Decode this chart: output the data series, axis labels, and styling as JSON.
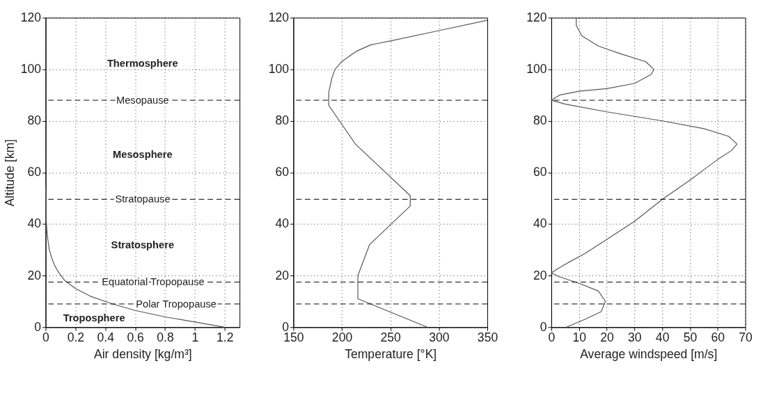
{
  "chart_data": [
    {
      "type": "line",
      "xlabel": "Air density [kg/m³]",
      "ylabel": "Altitude [km]",
      "xlim": [
        0,
        1.3
      ],
      "xticks": [
        0,
        0.2,
        0.4,
        0.6,
        0.8,
        1,
        1.2
      ],
      "ylim": [
        0,
        120
      ],
      "yticks": [
        0,
        20,
        40,
        60,
        80,
        100,
        120
      ],
      "grid": true,
      "series": [
        {
          "color": "#555555",
          "x": [
            1.2,
            1.0,
            0.8,
            0.6,
            0.45,
            0.3,
            0.2,
            0.13,
            0.09,
            0.06,
            0.04,
            0.025,
            0.015,
            0.008,
            0.004,
            0.002,
            0.001
          ],
          "values": [
            0,
            2,
            4,
            6.5,
            9,
            12,
            15,
            18,
            21,
            24,
            27,
            30,
            34,
            38,
            42,
            48,
            55
          ]
        }
      ],
      "ref_lines": [
        {
          "axis": "y",
          "value": 88,
          "color": "#000000",
          "line_style": "dashed",
          "label": "Mesopause"
        },
        {
          "axis": "y",
          "value": 49.6,
          "color": "#000000",
          "line_style": "dashed",
          "label": "Stratopause"
        },
        {
          "axis": "y",
          "value": 17.5,
          "color": "#000000",
          "line_style": "dashed",
          "label": "Equatorial Tropopause"
        },
        {
          "axis": "y",
          "value": 9,
          "color": "#000000",
          "line_style": "dashed",
          "label": "Polar Tropopause"
        }
      ],
      "annotations": [
        "Thermosphere",
        "Mesosphere",
        "Stratosphere",
        "Troposphere"
      ]
    },
    {
      "type": "line",
      "xlabel": "Temperature [°K]",
      "xlim": [
        150,
        350
      ],
      "xticks": [
        150,
        200,
        250,
        300,
        350
      ],
      "ylim": [
        0,
        120
      ],
      "yticks": [
        0,
        20,
        40,
        60,
        80,
        100,
        120
      ],
      "grid": true,
      "series": [
        {
          "color": "#555555",
          "x": [
            288,
            216.5,
            216.5,
            228.5,
            270.5,
            270.5,
            214,
            186.5,
            186.5,
            190,
            193,
            200,
            215,
            230,
            237,
            250,
            300,
            350
          ],
          "values": [
            0,
            11,
            20,
            32,
            47,
            51,
            71,
            86,
            91,
            97,
            100,
            103,
            107,
            109.5,
            110,
            111,
            115,
            119
          ]
        }
      ],
      "ref_lines": [
        {
          "axis": "y",
          "value": 88,
          "color": "#000000",
          "line_style": "dashed"
        },
        {
          "axis": "y",
          "value": 49.6,
          "color": "#000000",
          "line_style": "dashed"
        },
        {
          "axis": "y",
          "value": 17.5,
          "color": "#000000",
          "line_style": "dashed"
        },
        {
          "axis": "y",
          "value": 9,
          "color": "#000000",
          "line_style": "dashed"
        }
      ]
    },
    {
      "type": "line",
      "xlabel": "Average windspeed [m/s]",
      "xlim": [
        0,
        70
      ],
      "xticks": [
        0,
        10,
        20,
        30,
        40,
        50,
        60,
        70
      ],
      "ylim": [
        0,
        120
      ],
      "yticks": [
        0,
        20,
        40,
        60,
        80,
        100,
        120
      ],
      "grid": true,
      "series": [
        {
          "color": "#555555",
          "x": [
            5.5,
            12,
            18,
            19.5,
            17,
            10,
            3,
            0,
            2,
            6,
            12,
            20,
            30,
            40,
            50,
            60,
            65,
            67,
            64,
            55,
            40,
            20,
            5,
            0,
            3,
            10,
            20,
            30,
            36,
            37,
            34,
            25,
            17,
            11,
            9,
            9
          ],
          "values": [
            0,
            3,
            6,
            10,
            14,
            17,
            19.5,
            21,
            22.5,
            25,
            28.5,
            34,
            41,
            49.5,
            57,
            65,
            68.5,
            71,
            74,
            77,
            80,
            83.5,
            86.5,
            88,
            90,
            91.5,
            92.5,
            94.5,
            98,
            100,
            103,
            106,
            109,
            113,
            117,
            120
          ]
        }
      ],
      "ref_lines": [
        {
          "axis": "y",
          "value": 88,
          "color": "#000000",
          "line_style": "dashed"
        },
        {
          "axis": "y",
          "value": 49.6,
          "color": "#000000",
          "line_style": "dashed"
        },
        {
          "axis": "y",
          "value": 17.5,
          "color": "#000000",
          "line_style": "dashed"
        },
        {
          "axis": "y",
          "value": 9,
          "color": "#000000",
          "line_style": "dashed"
        }
      ]
    }
  ]
}
